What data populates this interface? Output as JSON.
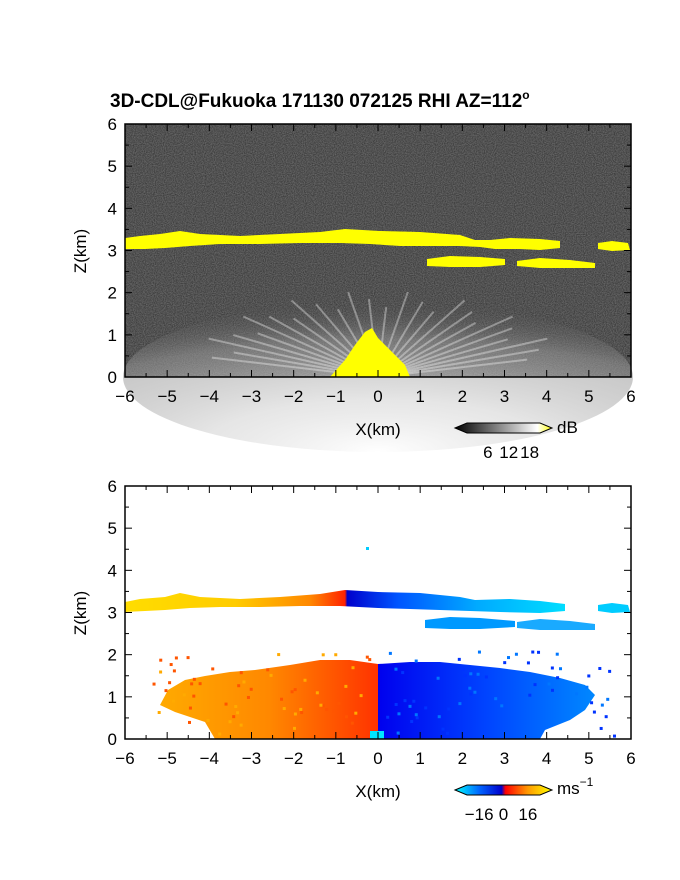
{
  "figure": {
    "title": "3D-CDL@Fukuoka 171130 072125 RHI AZ=112",
    "title_sup": "o"
  },
  "chart_data": [
    {
      "type": "heatmap",
      "panel": "reflectivity",
      "xlabel": "X(km)",
      "ylabel": "Z(km)",
      "xlim": [
        -6,
        6
      ],
      "ylim": [
        0,
        6
      ],
      "xticks": [
        -6,
        -5,
        -4,
        -3,
        -2,
        -1,
        0,
        1,
        2,
        3,
        4,
        5,
        6
      ],
      "yticks": [
        0,
        1,
        2,
        3,
        4,
        5,
        6
      ],
      "colorbar": {
        "unit": "dB",
        "ticks": [
          6,
          12,
          18
        ],
        "range": [
          0,
          21
        ],
        "colors": [
          "#000000",
          "#ffffff",
          "#ffff00"
        ]
      },
      "layers": [
        {
          "name": "upper cloud layer",
          "x": [
            -6,
            6
          ],
          "z": [
            2.95,
            3.4
          ],
          "value": 20
        },
        {
          "name": "lower cloud layer",
          "x": [
            1.2,
            5.1
          ],
          "z": [
            2.6,
            2.75
          ],
          "value": 20
        },
        {
          "name": "boundary layer aerosol",
          "x": [
            -6,
            6
          ],
          "z": [
            0,
            1.6
          ],
          "value": 12
        }
      ]
    },
    {
      "type": "heatmap",
      "panel": "doppler velocity",
      "xlabel": "X(km)",
      "ylabel": "Z(km)",
      "xlim": [
        -6,
        6
      ],
      "ylim": [
        0,
        6
      ],
      "xticks": [
        -6,
        -5,
        -4,
        -3,
        -2,
        -1,
        0,
        1,
        2,
        3,
        4,
        5,
        6
      ],
      "yticks": [
        0,
        1,
        2,
        3,
        4,
        5,
        6
      ],
      "colorbar": {
        "unit": "ms",
        "unit_sup": "−1",
        "ticks": [
          -16,
          0,
          16
        ],
        "range": [
          -24,
          24
        ],
        "colors": [
          "#00ffff",
          "#0066ff",
          "#0000cc",
          "#ff0000",
          "#ff9900",
          "#ffff00"
        ]
      },
      "layers": [
        {
          "name": "upper cloud layer",
          "x": [
            -6,
            6
          ],
          "z": [
            3.0,
            3.45
          ],
          "velocity_at_x": {
            "x": [
              -6,
              -3,
              -1,
              0,
              1,
              3,
              6
            ],
            "v": [
              20,
              16,
              8,
              2,
              -10,
              -18,
              -22
            ]
          }
        },
        {
          "name": "lower cloud layer",
          "x": [
            1.2,
            5.1
          ],
          "z": [
            2.6,
            2.8
          ],
          "velocity": -16
        },
        {
          "name": "boundary layer west",
          "x": [
            -5.2,
            0
          ],
          "z": [
            0,
            1.7
          ],
          "velocity": 10
        },
        {
          "name": "boundary layer east",
          "x": [
            0,
            5.5
          ],
          "z": [
            0,
            1.65
          ],
          "velocity": -8
        }
      ]
    }
  ]
}
